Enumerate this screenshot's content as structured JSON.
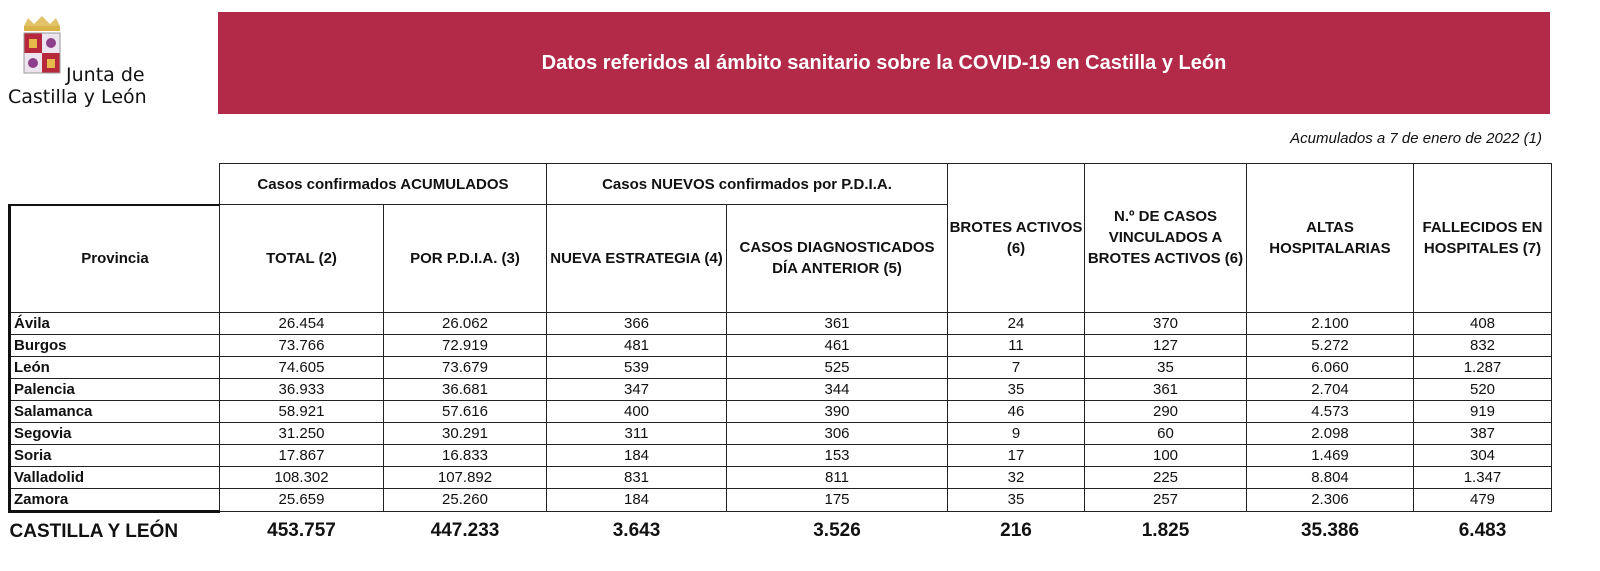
{
  "header": {
    "logo_text_line1": "Junta de",
    "logo_text_line2": "Castilla y León",
    "title": "Datos referidos al ámbito sanitario sobre la COVID-19 en Castilla y León",
    "date_note": "Acumulados a 7 de enero de 2022 (1)",
    "banner_color": "#b22a47"
  },
  "table": {
    "group_headers": [
      "Casos confirmados ACUMULADOS",
      "Casos NUEVOS confirmados por P.D.I.A."
    ],
    "columns": [
      "Provincia",
      "TOTAL (2)",
      "POR P.D.I.A. (3)",
      "NUEVA ESTRATEGIA (4)",
      "CASOS DIAGNOSTICADOS DÍA ANTERIOR (5)",
      "BROTES ACTIVOS (6)",
      "N.º DE CASOS VINCULADOS A BROTES ACTIVOS (6)",
      "ALTAS HOSPITALARIAS",
      "FALLECIDOS EN HOSPITALES (7)"
    ],
    "rows": [
      [
        "Ávila",
        "26.454",
        "26.062",
        "366",
        "361",
        "24",
        "370",
        "2.100",
        "408"
      ],
      [
        "Burgos",
        "73.766",
        "72.919",
        "481",
        "461",
        "11",
        "127",
        "5.272",
        "832"
      ],
      [
        "León",
        "74.605",
        "73.679",
        "539",
        "525",
        "7",
        "35",
        "6.060",
        "1.287"
      ],
      [
        "Palencia",
        "36.933",
        "36.681",
        "347",
        "344",
        "35",
        "361",
        "2.704",
        "520"
      ],
      [
        "Salamanca",
        "58.921",
        "57.616",
        "400",
        "390",
        "46",
        "290",
        "4.573",
        "919"
      ],
      [
        "Segovia",
        "31.250",
        "30.291",
        "311",
        "306",
        "9",
        "60",
        "2.098",
        "387"
      ],
      [
        "Soria",
        "17.867",
        "16.833",
        "184",
        "153",
        "17",
        "100",
        "1.469",
        "304"
      ],
      [
        "Valladolid",
        "108.302",
        "107.892",
        "831",
        "811",
        "32",
        "225",
        "8.804",
        "1.347"
      ],
      [
        "Zamora",
        "25.659",
        "25.260",
        "184",
        "175",
        "35",
        "257",
        "2.306",
        "479"
      ]
    ],
    "total": [
      "CASTILLA Y LEÓN",
      "453.757",
      "447.233",
      "3.643",
      "3.526",
      "216",
      "1.825",
      "35.386",
      "6.483"
    ]
  }
}
